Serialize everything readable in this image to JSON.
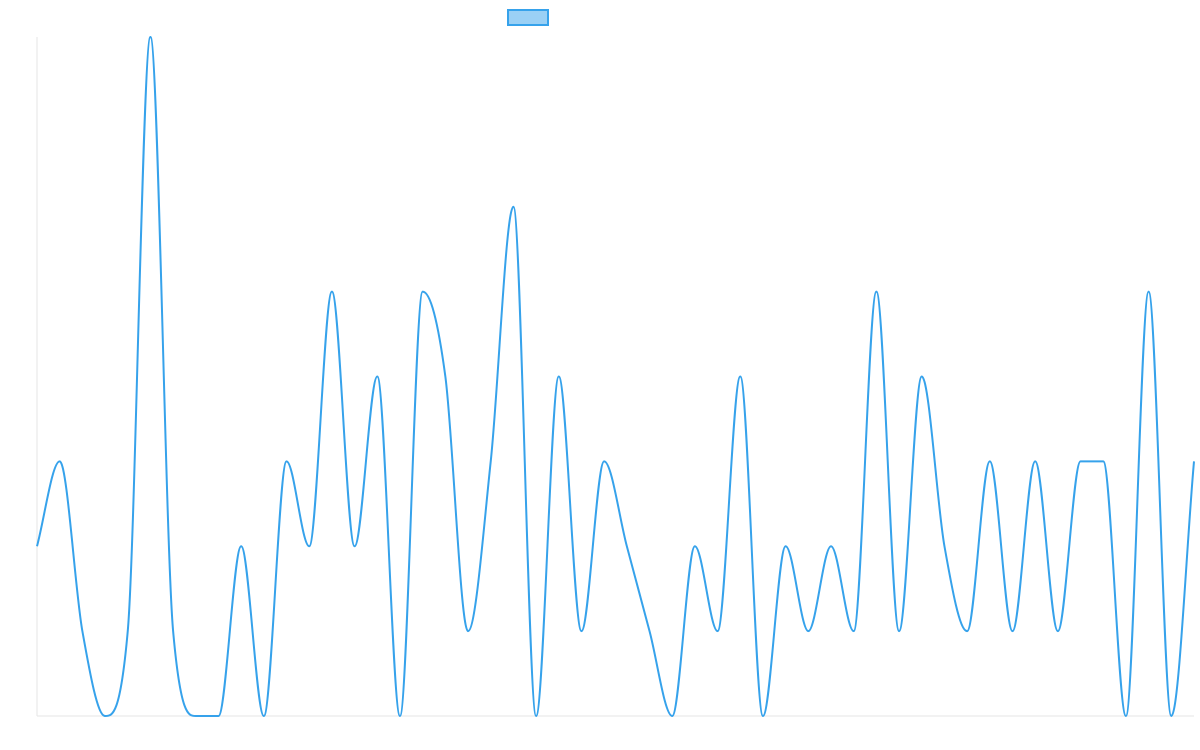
{
  "chart_data": {
    "type": "line",
    "title": "",
    "xlabel": "",
    "ylabel": "",
    "legend": {
      "placement": "top-center",
      "entries": [
        {
          "label": "",
          "color": "#36a2eb",
          "fill": "#9ad0f5"
        }
      ]
    },
    "grid": false,
    "smooth": true,
    "x": [
      0,
      1,
      2,
      3,
      4,
      5,
      6,
      7,
      8,
      9,
      10,
      11,
      12,
      13,
      14,
      15,
      16,
      17,
      18,
      19,
      20,
      21,
      22,
      23,
      24,
      25,
      26,
      27,
      28,
      29,
      30,
      31,
      32,
      33,
      34,
      35,
      36,
      37,
      38,
      39,
      40,
      41,
      42,
      43,
      44,
      45,
      46,
      47,
      48,
      49,
      50,
      51
    ],
    "xlim": [
      0,
      51
    ],
    "ylim": [
      0,
      8
    ],
    "series": [
      {
        "name": "",
        "color": "#36a2eb",
        "values": [
          2,
          3,
          1,
          0,
          1,
          8,
          1,
          0,
          0,
          2,
          0,
          3,
          2,
          5,
          2,
          4,
          0,
          5,
          4,
          1,
          3,
          6,
          0,
          4,
          1,
          3,
          2,
          1,
          0,
          2,
          1,
          4,
          0,
          2,
          1,
          2,
          1,
          5,
          1,
          4,
          2,
          1,
          3,
          1,
          3,
          1,
          3,
          3,
          0,
          5,
          0,
          3
        ]
      }
    ]
  }
}
